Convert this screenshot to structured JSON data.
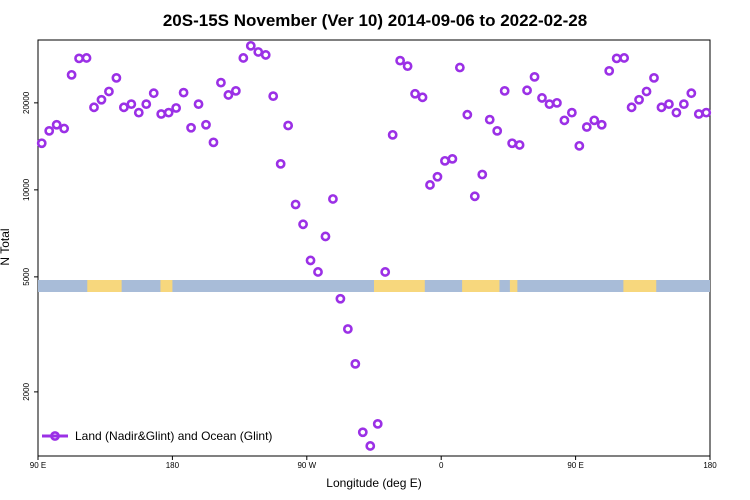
{
  "chart_data": {
    "type": "scatter",
    "title": "20S-15S November (Ver 10)   2014-09-06 to 2022-02-28",
    "xlabel": "Longitude (deg E)",
    "ylabel": "N Total",
    "y_scale": "log",
    "xlim": [
      90,
      540
    ],
    "ylim": [
      1200,
      33000
    ],
    "x_ticks": [
      {
        "value": 90,
        "label": "90 E"
      },
      {
        "value": 180,
        "label": "180"
      },
      {
        "value": 270,
        "label": "90 W"
      },
      {
        "value": 360,
        "label": "0"
      },
      {
        "value": 450,
        "label": "90 E"
      },
      {
        "value": 540,
        "label": "180"
      }
    ],
    "y_ticks": [
      {
        "value": 2000,
        "label": "2000"
      },
      {
        "value": 5000,
        "label": "5000"
      },
      {
        "value": 10000,
        "label": "10000"
      },
      {
        "value": 20000,
        "label": "20000"
      }
    ],
    "series": [
      {
        "name": "Land (Nadir&Glint) and Ocean (Glint)",
        "color": "#9b30e6",
        "x": [
          92.5,
          97.5,
          102.5,
          107.5,
          112.5,
          117.5,
          122.5,
          127.5,
          132.5,
          137.5,
          142.5,
          147.5,
          152.5,
          157.5,
          162.5,
          167.5,
          172.5,
          177.5,
          182.5,
          187.5,
          192.5,
          197.5,
          202.5,
          207.5,
          212.5,
          217.5,
          222.5,
          227.5,
          232.5,
          237.5,
          242.5,
          247.5,
          252.5,
          257.5,
          262.5,
          267.5,
          272.5,
          277.5,
          282.5,
          287.5,
          292.5,
          297.5,
          302.5,
          307.5,
          312.5,
          317.5,
          322.5,
          327.5,
          332.5,
          337.5,
          342.5,
          347.5,
          352.5,
          357.5,
          362.5,
          367.5,
          372.5,
          377.5,
          382.5,
          387.5,
          392.5,
          397.5,
          402.5,
          407.5,
          412.5,
          417.5,
          422.5,
          427.5,
          432.5,
          437.5,
          442.5,
          447.5,
          452.5,
          457.5,
          462.5,
          467.5,
          472.5,
          477.5,
          482.5,
          487.5,
          492.5,
          497.5,
          502.5,
          507.5,
          512.5,
          517.5,
          522.5,
          527.5,
          532.5,
          537.5
        ],
        "y": [
          14500,
          16000,
          16800,
          16300,
          25000,
          28500,
          28600,
          19300,
          20500,
          21900,
          24400,
          19300,
          19800,
          18500,
          19800,
          21600,
          18300,
          18500,
          19200,
          21700,
          16400,
          19800,
          16800,
          14600,
          23500,
          21300,
          22000,
          28600,
          31500,
          30000,
          29300,
          21100,
          12300,
          16700,
          8900,
          7600,
          5700,
          5200,
          6900,
          9300,
          4200,
          3300,
          2500,
          1450,
          1300,
          1550,
          5200,
          15500,
          28000,
          26800,
          21500,
          20900,
          10400,
          11100,
          12600,
          12800,
          26500,
          18200,
          9500,
          11300,
          17500,
          16000,
          22000,
          14500,
          14300,
          22100,
          24600,
          20800,
          19800,
          20000,
          17400,
          18500,
          14200,
          16500,
          17400,
          16800,
          25800,
          28500,
          28600,
          19300,
          20500,
          21900,
          24400,
          19300,
          19800,
          18500,
          19800,
          21600,
          18300,
          18500
        ]
      }
    ],
    "land_sea_strip": {
      "ocean_color": "#a8bcd8",
      "land_color": "#f7d77d",
      "land_ranges": [
        [
          123,
          146
        ],
        [
          172,
          180
        ],
        [
          315,
          349
        ],
        [
          374,
          399
        ],
        [
          406,
          411
        ],
        [
          482,
          504
        ]
      ]
    },
    "legend": "bottom-left",
    "grid": false
  }
}
